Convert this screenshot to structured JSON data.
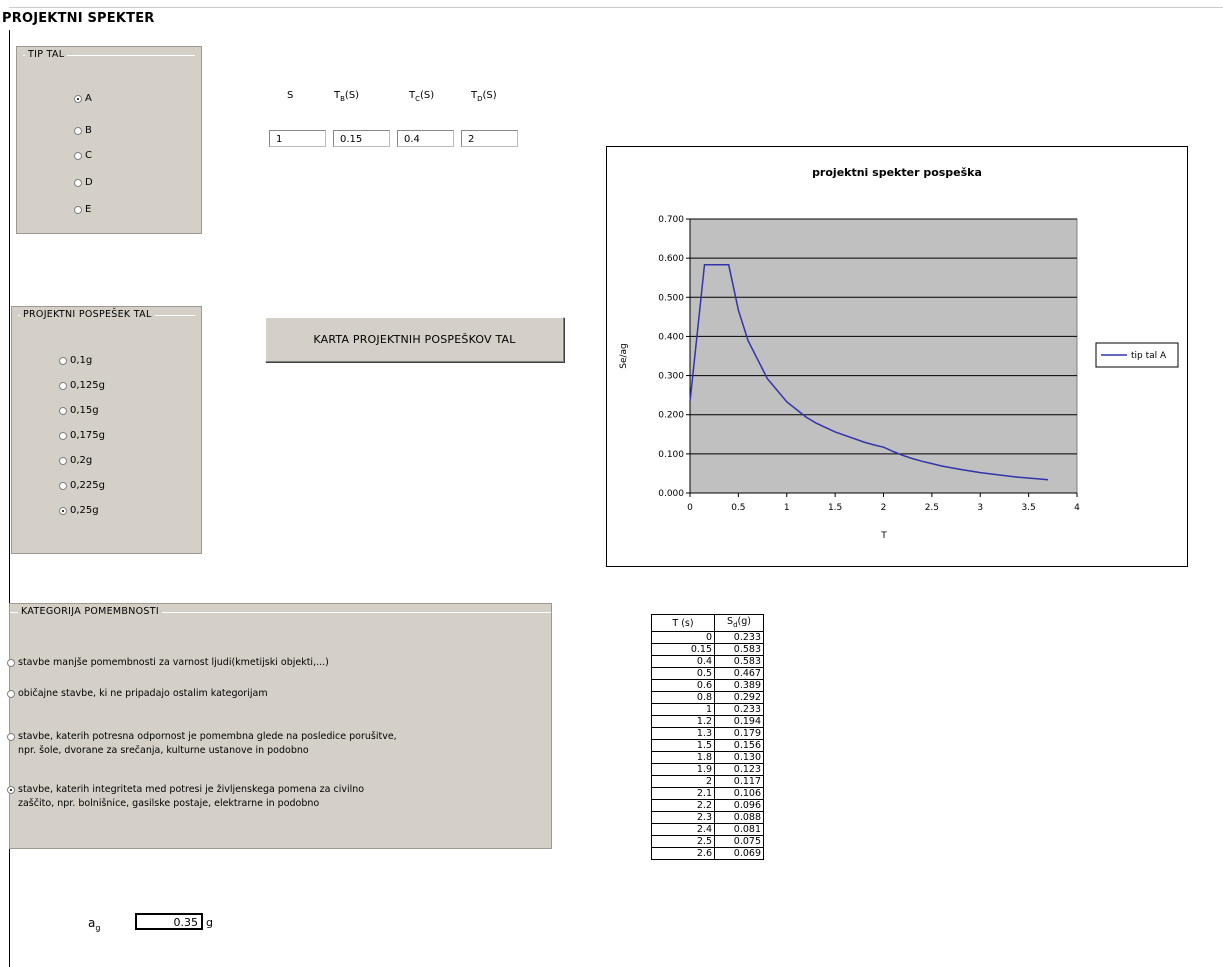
{
  "title": "PROJEKTNI SPEKTER",
  "tip_tal": {
    "legend": "TIP TAL",
    "options": [
      "A",
      "B",
      "C",
      "D",
      "E"
    ],
    "selected": "A"
  },
  "params": {
    "labels": {
      "s": "S",
      "tb": "T",
      "tb_sub": "B",
      "tc": "T",
      "tc_sub": "C",
      "td": "T",
      "td_sub": "D",
      "unit": "(S)"
    },
    "values": {
      "s": "1",
      "tb": "0.15",
      "tc": "0.4",
      "td": "2"
    }
  },
  "pospesek": {
    "legend": "PROJEKTNI POSPEŠEK TAL",
    "options": [
      "0,1g",
      "0,125g",
      "0,15g",
      "0,175g",
      "0,2g",
      "0,225g",
      "0,25g"
    ],
    "selected": "0,25g"
  },
  "button": {
    "label": "KARTA PROJEKTNIH POSPEŠKOV TAL"
  },
  "kategorija": {
    "legend": "KATEGORIJA POMEMBNOSTI",
    "options": [
      "stavbe manjše pomembnosti za varnost ljudi(kmetijski objekti,...)",
      "običajne stavbe, ki ne pripadajo ostalim kategorijam",
      "stavbe, katerih potresna odpornost je pomembna glede na posledice porušitve,\nnpr. šole, dvorane za srečanja, kulturne ustanove in podobno",
      "stavbe, katerih integriteta med potresi je življenskega pomena za civilno\nzaščito, npr. bolnišnice, gasilske postaje, elektrarne in podobno"
    ],
    "selected_index": 3
  },
  "ag": {
    "label": "a",
    "sub": "g",
    "value": "0.35",
    "unit": "g"
  },
  "table": {
    "headers": [
      "T (s)",
      "S",
      "d",
      "(g)"
    ],
    "rows": [
      [
        "0",
        "0.233"
      ],
      [
        "0.15",
        "0.583"
      ],
      [
        "0.4",
        "0.583"
      ],
      [
        "0.5",
        "0.467"
      ],
      [
        "0.6",
        "0.389"
      ],
      [
        "0.8",
        "0.292"
      ],
      [
        "1",
        "0.233"
      ],
      [
        "1.2",
        "0.194"
      ],
      [
        "1.3",
        "0.179"
      ],
      [
        "1.5",
        "0.156"
      ],
      [
        "1.8",
        "0.130"
      ],
      [
        "1.9",
        "0.123"
      ],
      [
        "2",
        "0.117"
      ],
      [
        "2.1",
        "0.106"
      ],
      [
        "2.2",
        "0.096"
      ],
      [
        "2.3",
        "0.088"
      ],
      [
        "2.4",
        "0.081"
      ],
      [
        "2.5",
        "0.075"
      ],
      [
        "2.6",
        "0.069"
      ]
    ]
  },
  "chart_data": {
    "type": "line",
    "title": "projektni spekter pospeška",
    "xlabel": "T",
    "ylabel": "Se/ag",
    "xlim": [
      0,
      4
    ],
    "ylim": [
      0,
      0.7
    ],
    "xticks": [
      "0",
      "0.5",
      "1",
      "1.5",
      "2",
      "2.5",
      "3",
      "3.5",
      "4"
    ],
    "yticks": [
      "0.000",
      "0.100",
      "0.200",
      "0.300",
      "0.400",
      "0.500",
      "0.600",
      "0.700"
    ],
    "grid": "horizontal",
    "legend": "right",
    "plot_bg": "#c0c0c0",
    "series": [
      {
        "name": "tip tal A",
        "color": "#3333aa",
        "x": [
          0,
          0.15,
          0.4,
          0.5,
          0.6,
          0.8,
          1,
          1.2,
          1.3,
          1.5,
          1.8,
          1.9,
          2,
          2.1,
          2.2,
          2.3,
          2.4,
          2.5,
          2.6,
          2.8,
          3.0,
          3.2,
          3.4,
          3.6,
          3.7
        ],
        "y": [
          0.233,
          0.583,
          0.583,
          0.467,
          0.389,
          0.292,
          0.233,
          0.194,
          0.179,
          0.156,
          0.13,
          0.123,
          0.117,
          0.106,
          0.096,
          0.088,
          0.081,
          0.075,
          0.069,
          0.06,
          0.052,
          0.046,
          0.04,
          0.036,
          0.034
        ]
      }
    ]
  }
}
